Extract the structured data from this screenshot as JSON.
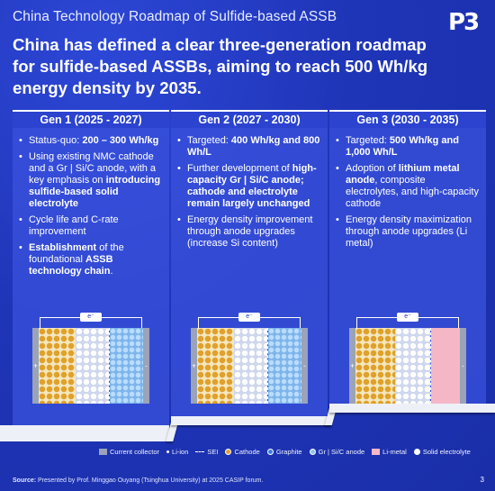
{
  "slide": {
    "title": "China Technology Roadmap of Sulfide-based ASSB",
    "logo": "P3",
    "headline": "China has defined a clear three-generation roadmap for sulfide-based ASSBs, aiming to reach 500 Wh/kg energy density by 2035."
  },
  "generations": [
    {
      "header": "Gen 1 (2025 - 2027)",
      "bullets": [
        [
          {
            "t": "Status-quo: ",
            "b": false
          },
          {
            "t": "200 – 300 Wh/kg",
            "b": true
          }
        ],
        [
          {
            "t": "Using existing NMC cathode and a Gr | Si/C anode, with a key emphasis on ",
            "b": false
          },
          {
            "t": "introducing sulfide-based solid electrolyte",
            "b": true
          }
        ],
        [
          {
            "t": "Cycle life and C-rate improvement",
            "b": false
          }
        ],
        [
          {
            "t": "Establishment",
            "b": true
          },
          {
            "t": " of the foundational ",
            "b": false
          },
          {
            "t": "ASSB technology chain",
            "b": true
          },
          {
            "t": ".",
            "b": false
          }
        ]
      ],
      "anode": "grsi"
    },
    {
      "header": "Gen 2 (2027 - 2030)",
      "bullets": [
        [
          {
            "t": "Targeted: ",
            "b": false
          },
          {
            "t": "400 Wh/kg and 800 Wh/L",
            "b": true
          }
        ],
        [
          {
            "t": "Further development of ",
            "b": false
          },
          {
            "t": "high-capacity Gr | Si/C anode; cathode and electrolyte remain largely unchanged",
            "b": true
          }
        ],
        [
          {
            "t": "Energy density improvement through anode upgrades (increase Si content)",
            "b": false
          }
        ]
      ],
      "anode": "grsi"
    },
    {
      "header": "Gen 3 (2030 - 2035)",
      "bullets": [
        [
          {
            "t": "Targeted: ",
            "b": false
          },
          {
            "t": "500 Wh/kg and 1,000 Wh/L",
            "b": true
          }
        ],
        [
          {
            "t": "Adoption of ",
            "b": false
          },
          {
            "t": "lithium metal anode",
            "b": true
          },
          {
            "t": ", composite electrolytes, and high-capacity cathode",
            "b": false
          }
        ],
        [
          {
            "t": "Energy density maximization through anode upgrades (Li metal)",
            "b": false
          }
        ]
      ],
      "anode": "li"
    }
  ],
  "cell": {
    "electron_label": "e⁻",
    "minus": "-",
    "plus": "+"
  },
  "legend": [
    {
      "label": "Current collector",
      "icon": "collector-swatch",
      "color": "#9aa3b8"
    },
    {
      "label": "Li-ion",
      "icon": "dot-swatch",
      "color": "#ffffff"
    },
    {
      "label": "SEI",
      "icon": "dashed-line-swatch",
      "color": "#ffffff"
    },
    {
      "label": "Cathode",
      "icon": "circle-swatch",
      "color": "#e0a12a"
    },
    {
      "label": "Graphite",
      "icon": "circle-swatch",
      "color": "#3d7fd8"
    },
    {
      "label": "Gr | Si/C anode",
      "icon": "circle-swatch",
      "color": "#8cc4f2"
    },
    {
      "label": "Li-metal",
      "icon": "rect-swatch",
      "color": "#f5b7c6"
    },
    {
      "label": "Solid electrolyte",
      "icon": "circle-swatch",
      "color": "#ffffff"
    }
  ],
  "footer": {
    "source_label": "Source:",
    "source_text": " Presented by Prof. Minggao Ouyang (Tsinghua University) at 2025 CASIP forum.",
    "page": "3"
  }
}
